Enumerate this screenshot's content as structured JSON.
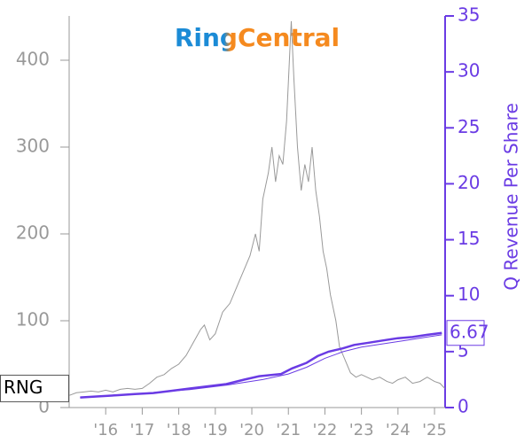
{
  "chart_data": {
    "type": "line",
    "title": "RingCentral",
    "y2label": "Q Revenue Per Share",
    "xlim": [
      2015.0,
      2025.29
    ],
    "ylim": [
      0,
      451
    ],
    "y2lim": [
      0,
      35
    ],
    "xticks": [
      {
        "value": 2016,
        "label": "'16"
      },
      {
        "value": 2017,
        "label": "'17"
      },
      {
        "value": 2018,
        "label": "'18"
      },
      {
        "value": 2019,
        "label": "'19"
      },
      {
        "value": 2020,
        "label": "'20"
      },
      {
        "value": 2021,
        "label": "'21"
      },
      {
        "value": 2022,
        "label": "'22"
      },
      {
        "value": 2023,
        "label": "'23"
      },
      {
        "value": 2024,
        "label": "'24"
      },
      {
        "value": 2025,
        "label": "'25"
      }
    ],
    "yticks": [
      0,
      100,
      200,
      300,
      400
    ],
    "y2ticks": [
      0,
      5,
      10,
      15,
      20,
      25,
      30,
      35
    ],
    "series": [
      {
        "name": "RNG",
        "color": "#999999",
        "axis": "y",
        "x": [
          2015.0,
          2015.2,
          2015.4,
          2015.6,
          2015.8,
          2016.0,
          2016.2,
          2016.4,
          2016.6,
          2016.8,
          2017.0,
          2017.2,
          2017.4,
          2017.6,
          2017.8,
          2018.0,
          2018.2,
          2018.4,
          2018.6,
          2018.7,
          2018.85,
          2019.0,
          2019.2,
          2019.4,
          2019.6,
          2019.8,
          2019.95,
          2020.1,
          2020.2,
          2020.3,
          2020.45,
          2020.55,
          2020.65,
          2020.75,
          2020.85,
          2020.95,
          2021.05,
          2021.08,
          2021.15,
          2021.25,
          2021.35,
          2021.45,
          2021.55,
          2021.65,
          2021.75,
          2021.85,
          2021.95,
          2022.05,
          2022.15,
          2022.3,
          2022.4,
          2022.55,
          2022.7,
          2022.85,
          2023.0,
          2023.15,
          2023.3,
          2023.5,
          2023.7,
          2023.85,
          2024.0,
          2024.2,
          2024.4,
          2024.6,
          2024.8,
          2025.0,
          2025.15,
          2025.28
        ],
        "values": [
          14,
          17,
          18,
          19,
          18,
          20,
          18,
          21,
          22,
          21,
          22,
          28,
          35,
          38,
          45,
          50,
          60,
          75,
          90,
          95,
          78,
          85,
          110,
          120,
          140,
          160,
          175,
          200,
          180,
          240,
          270,
          300,
          260,
          290,
          280,
          330,
          420,
          445,
          380,
          300,
          250,
          280,
          260,
          300,
          250,
          220,
          180,
          160,
          130,
          100,
          70,
          55,
          40,
          35,
          38,
          35,
          32,
          35,
          30,
          28,
          32,
          35,
          28,
          30,
          35,
          30,
          28,
          22
        ]
      },
      {
        "color": "#6a3be4",
        "axis": "y2",
        "x": [
          2015.3,
          2015.8,
          2016.3,
          2016.8,
          2017.3,
          2017.8,
          2018.3,
          2018.8,
          2019.3,
          2019.8,
          2020.2,
          2020.5,
          2020.8,
          2021.1,
          2021.5,
          2021.8,
          2022.1,
          2022.5,
          2022.8,
          2023.2,
          2023.6,
          2024.0,
          2024.4,
          2024.8,
          2025.2
        ],
        "values": [
          0.9,
          1.0,
          1.1,
          1.2,
          1.3,
          1.5,
          1.7,
          1.9,
          2.1,
          2.5,
          2.8,
          2.9,
          3.0,
          3.5,
          4.0,
          4.6,
          5.0,
          5.3,
          5.6,
          5.8,
          6.0,
          6.2,
          6.3,
          6.5,
          6.67
        ]
      },
      {
        "color": "#6a3be4",
        "axis": "y2",
        "x": [
          2015.3,
          2016.3,
          2017.3,
          2018.3,
          2019.3,
          2020.3,
          2021.0,
          2021.5,
          2022.0,
          2022.5,
          2023.0,
          2023.6,
          2024.2,
          2024.8,
          2025.2
        ],
        "values": [
          0.9,
          1.1,
          1.35,
          1.6,
          2.0,
          2.5,
          3.0,
          3.6,
          4.4,
          5.0,
          5.4,
          5.7,
          6.0,
          6.3,
          6.5
        ]
      }
    ]
  }
}
